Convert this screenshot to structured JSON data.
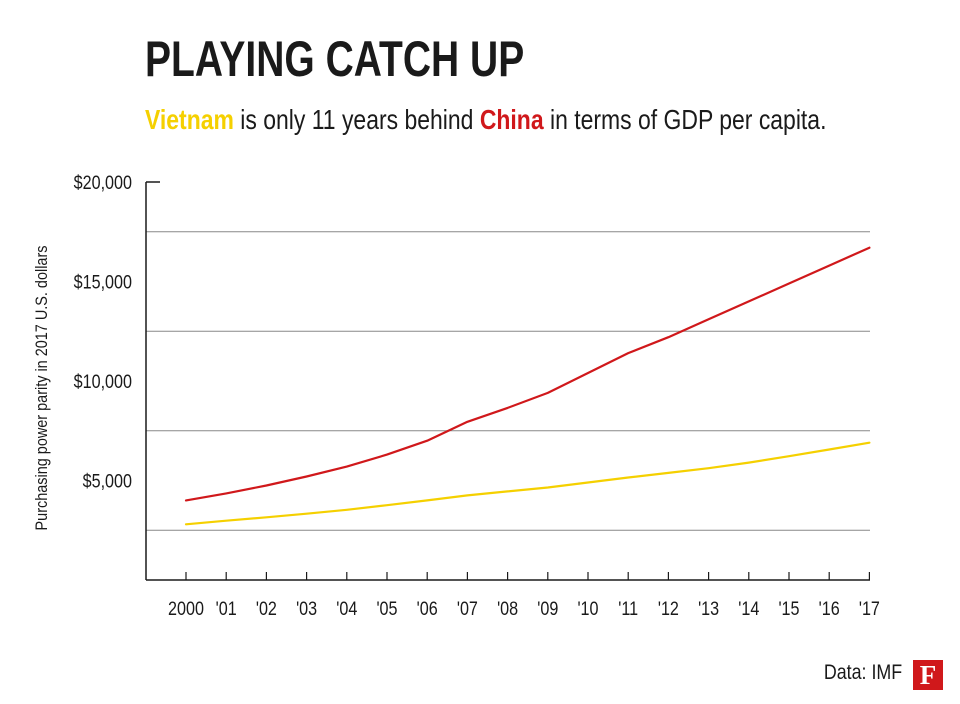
{
  "header": {
    "title": "PLAYING CATCH UP",
    "subtitle_highlight_1": "Vietnam",
    "subtitle_text_1": " is only 11 years behind ",
    "subtitle_highlight_2": "China",
    "subtitle_text_2": " in terms of GDP per capita."
  },
  "footer": {
    "source": "Data: IMF",
    "logo_letter": "F"
  },
  "colors": {
    "china": "#d0181b",
    "vietnam": "#f5d000",
    "grid": "#888888",
    "axis": "#1a1a1a"
  },
  "chart_data": {
    "type": "line",
    "title": "PLAYING CATCH UP",
    "xlabel": "",
    "ylabel": "Purchasing power parity in 2017 U.S. dollars",
    "categories": [
      "2000",
      "'01",
      "'02",
      "'03",
      "'04",
      "'05",
      "'06",
      "'07",
      "'08",
      "'09",
      "'10",
      "'11",
      "'12",
      "'13",
      "'14",
      "'15",
      "'16",
      "'17"
    ],
    "y_ticks": [
      5000,
      10000,
      15000,
      20000
    ],
    "y_tick_labels": [
      "$5,000",
      "$10,000",
      "$15,000",
      "$20,000"
    ],
    "gridlines": [
      2500,
      7500,
      12500,
      17500
    ],
    "ylim": [
      0,
      20000
    ],
    "series": [
      {
        "name": "China",
        "color": "#d0181b",
        "values": [
          4000,
          4350,
          4750,
          5200,
          5700,
          6300,
          7000,
          7950,
          8650,
          9400,
          10400,
          11400,
          12200,
          13100,
          14000,
          14900,
          15800,
          16700
        ]
      },
      {
        "name": "Vietnam",
        "color": "#f5d000",
        "values": [
          2800,
          2980,
          3150,
          3330,
          3530,
          3760,
          4000,
          4250,
          4450,
          4650,
          4900,
          5150,
          5380,
          5620,
          5900,
          6220,
          6560,
          6900
        ]
      }
    ]
  }
}
